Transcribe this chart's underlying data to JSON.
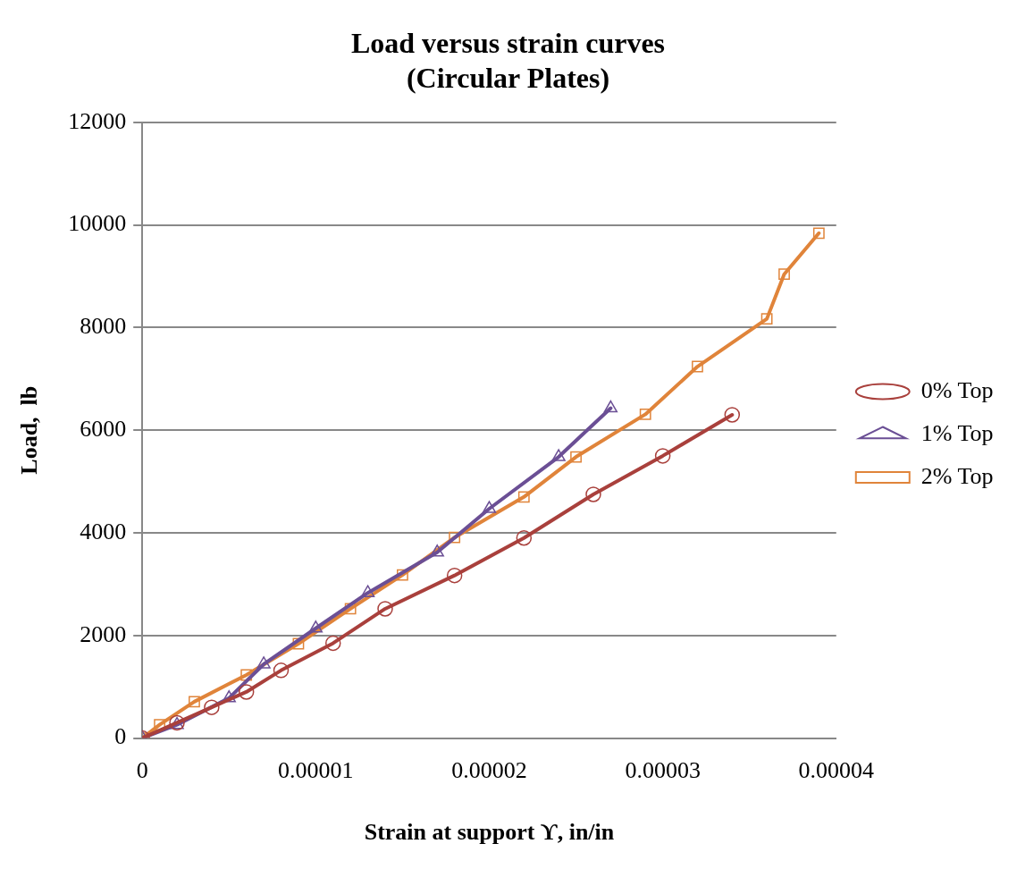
{
  "chart_data": {
    "type": "line",
    "title": [
      "Load versus strain curves",
      "(Circular Plates)"
    ],
    "xlabel": "Strain at support ϒ, in/in",
    "ylabel": "Load,  lb",
    "xlim": [
      0,
      4e-05
    ],
    "xticks": [
      0,
      {
        "value": 1e-05,
        "label": "0.00001"
      },
      {
        "value": 2e-05,
        "label": "0.00002"
      },
      {
        "value": 3e-05,
        "label": "0.00003"
      },
      {
        "value": 4e-05,
        "label": "0.00004"
      }
    ],
    "ylim": [
      0,
      12000
    ],
    "yticks": [
      0,
      2000,
      4000,
      6000,
      8000,
      10000,
      12000
    ],
    "grid": "y",
    "legend": "right",
    "line_style": "solid",
    "series": [
      {
        "name": "0% Top",
        "color": "#a9403c",
        "marker": "circle",
        "x": [
          0,
          2e-06,
          4e-06,
          6e-06,
          8e-06,
          1.1e-05,
          1.4e-05,
          1.8e-05,
          2.2e-05,
          2.6e-05,
          3e-05,
          3.4e-05
        ],
        "values": [
          0,
          300,
          600,
          900,
          1320,
          1850,
          2520,
          3170,
          3900,
          4750,
          5500,
          6300
        ]
      },
      {
        "name": "1% Top",
        "color": "#6b4f95",
        "marker": "triangle",
        "x": [
          0,
          2e-06,
          5e-06,
          7e-06,
          1e-05,
          1.3e-05,
          1.7e-05,
          2e-05,
          2.4e-05,
          2.7e-05
        ],
        "values": [
          0,
          260,
          780,
          1440,
          2140,
          2830,
          3620,
          4470,
          5480,
          6430
        ]
      },
      {
        "name": "2% Top",
        "color": "#e0843a",
        "marker": "square",
        "x": [
          0,
          1e-06,
          3e-06,
          6e-06,
          9e-06,
          1.2e-05,
          1.5e-05,
          1.8e-05,
          2.2e-05,
          2.5e-05,
          2.9e-05,
          3.2e-05,
          3.6e-05,
          3.7e-05,
          3.9e-05
        ],
        "values": [
          0,
          260,
          710,
          1230,
          1840,
          2520,
          3180,
          3910,
          4700,
          5480,
          6310,
          7240,
          8170,
          9040,
          9840
        ]
      }
    ]
  }
}
